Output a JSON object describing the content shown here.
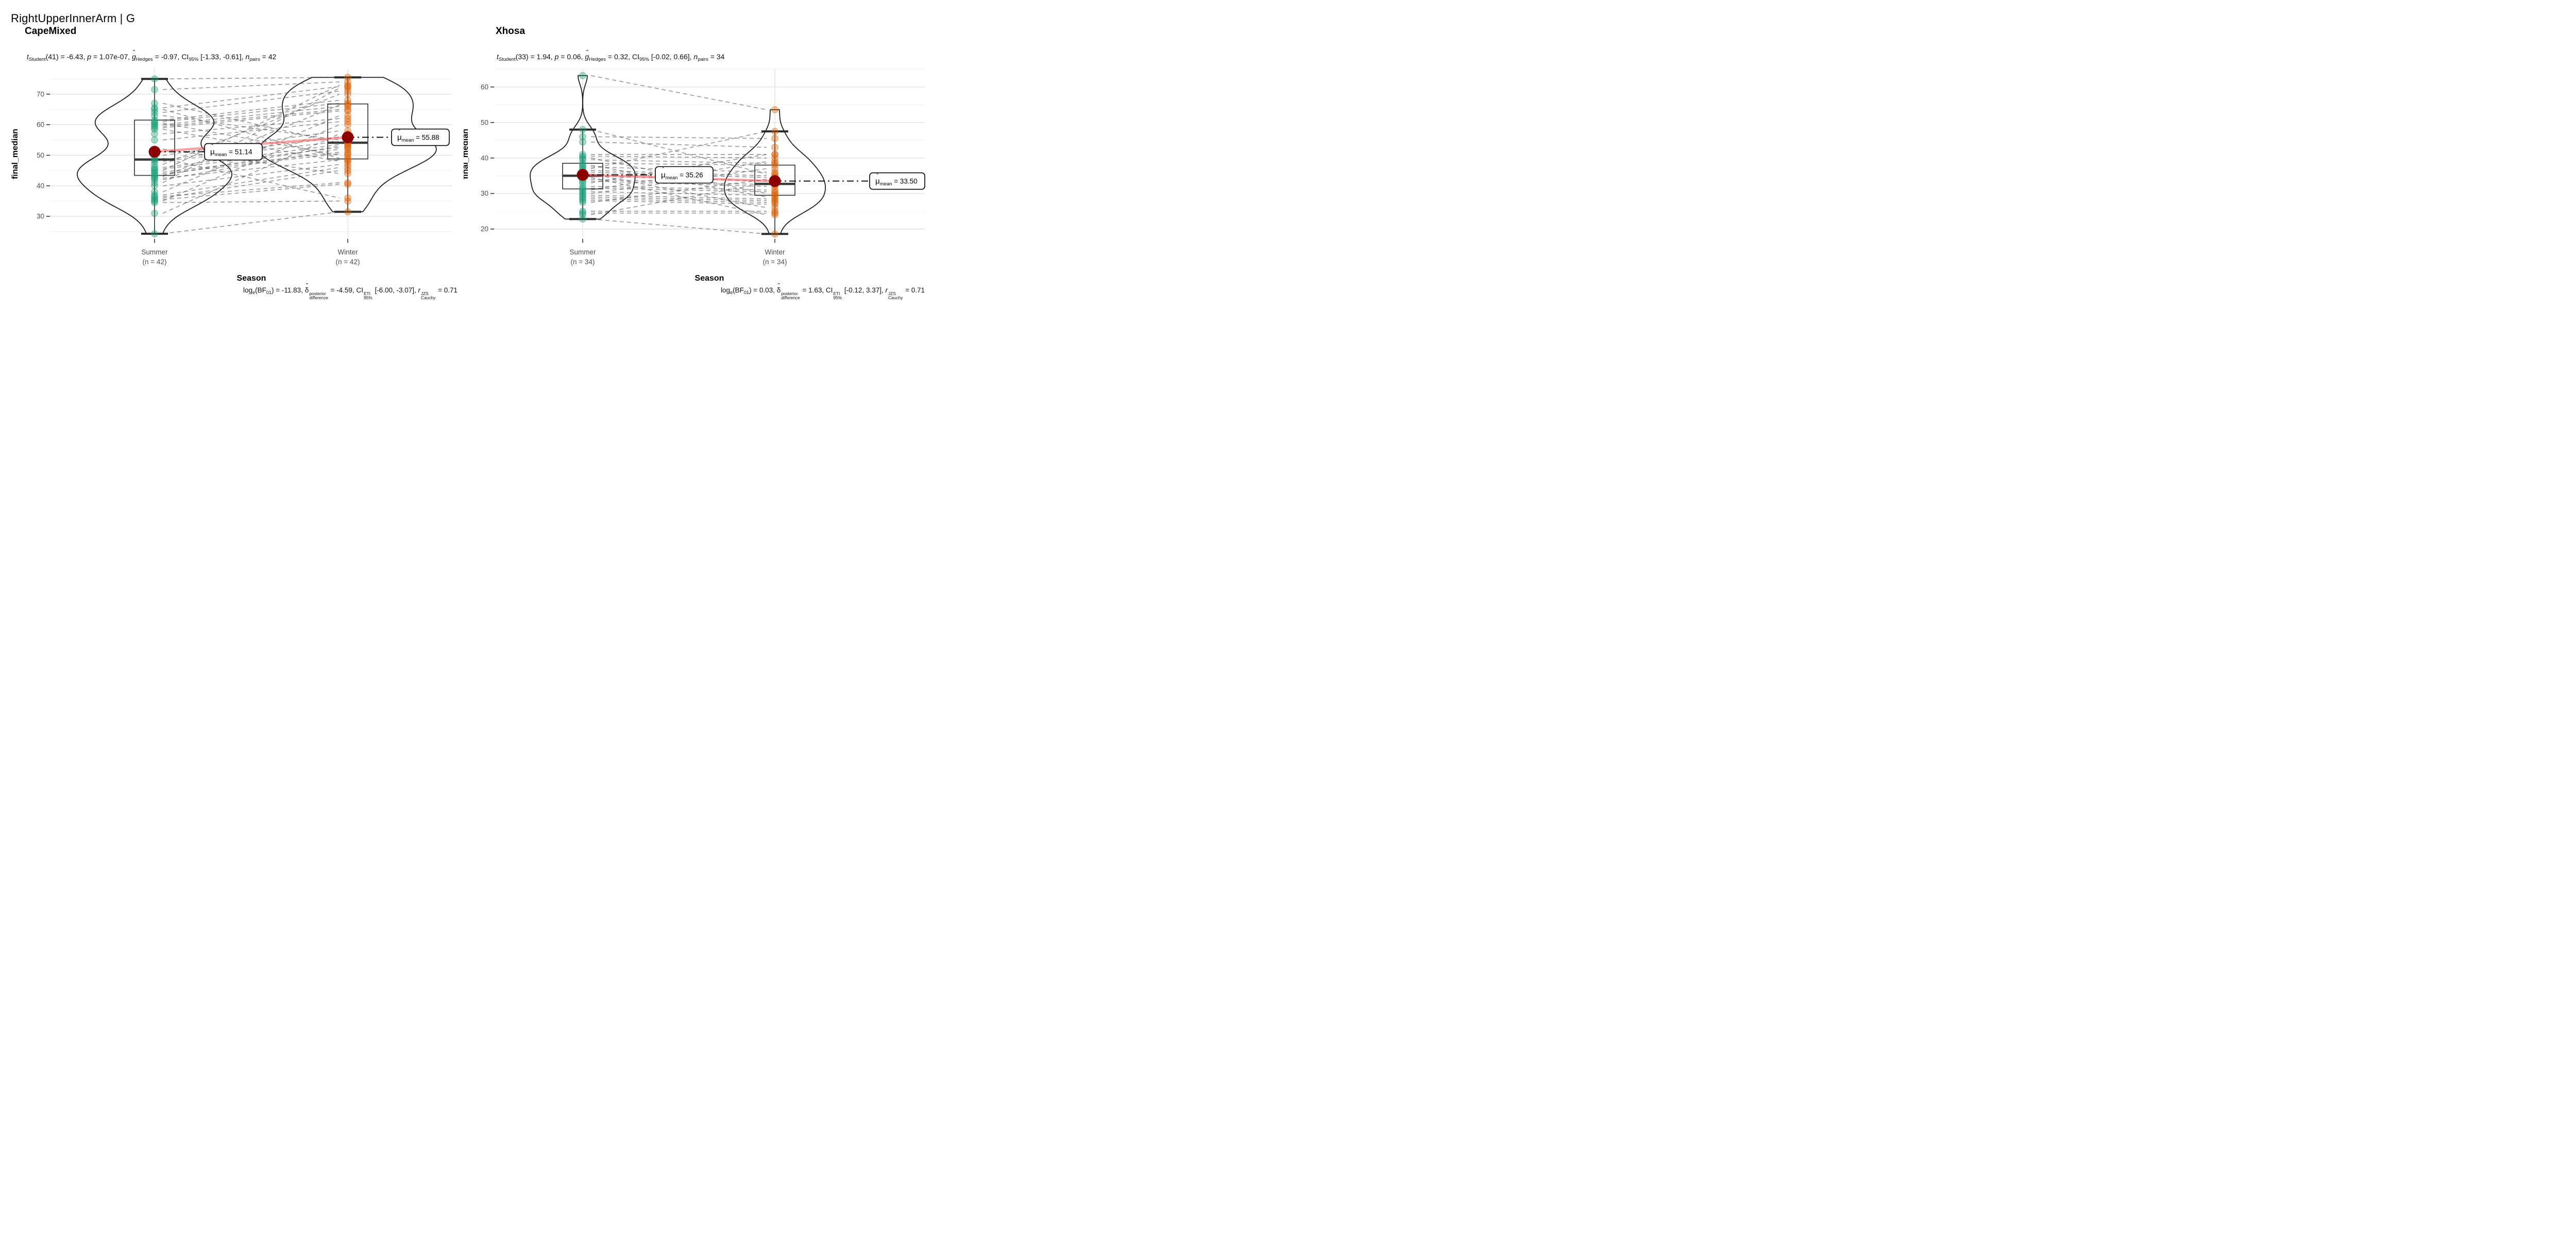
{
  "title": "RightUpperInnerArm | G",
  "colors": {
    "summer_points": "#1B9E77",
    "winter_points": "#D95F02",
    "mean_dot": "#8B0000",
    "mean_trend_line": "#FF5252",
    "paired_line": "#4A4A4A",
    "grid_major": "#E2E2E2",
    "grid_minor": "#EFEFEF",
    "axis_text": "#4D4D4D"
  },
  "chart_data": [
    {
      "type": "violin-box-scatter-paired",
      "group_title": "CapeMixed",
      "xlabel": "Season",
      "ylabel": "final_median",
      "categories": [
        {
          "label": "Summer",
          "n_label": "(n = 42)"
        },
        {
          "label": "Winter",
          "n_label": "(n = 42)"
        }
      ],
      "y_ticks": [
        30,
        40,
        50,
        60,
        70
      ],
      "y_minor": [
        25,
        35,
        45,
        55,
        65,
        75
      ],
      "ylim_view": [
        22.6,
        78.4
      ],
      "grid": true,
      "legend": "none",
      "means": [
        51.14,
        55.88
      ],
      "mean_labels": [
        "51.14",
        "55.88"
      ],
      "mean_label_prefix": "mean",
      "box": [
        {
          "lo": 24.3,
          "q1": 43.4,
          "median": 48.6,
          "q3": 61.5,
          "hi": 75.0
        },
        {
          "lo": 31.5,
          "q1": 48.8,
          "median": 54.1,
          "q3": 66.8,
          "hi": 75.5
        }
      ],
      "violin_halfwidth": [
        150,
        172
      ],
      "pairs": [
        [
          24.3,
          31.5
        ],
        [
          31,
          57
        ],
        [
          34.5,
          35
        ],
        [
          35,
          60
        ],
        [
          35.5,
          40.5
        ],
        [
          36,
          45
        ],
        [
          36.5,
          41
        ],
        [
          37,
          46
        ],
        [
          38,
          63
        ],
        [
          40,
          47
        ],
        [
          41,
          72
        ],
        [
          42,
          52
        ],
        [
          42.5,
          48.5
        ],
        [
          43,
          66.5
        ],
        [
          43.5,
          53
        ],
        [
          44,
          50.5
        ],
        [
          44.5,
          51
        ],
        [
          45,
          73
        ],
        [
          45.5,
          52.5
        ],
        [
          46,
          53.5
        ],
        [
          47,
          70
        ],
        [
          48,
          54.5
        ],
        [
          48.5,
          56
        ],
        [
          49,
          36
        ],
        [
          50,
          58
        ],
        [
          52,
          44
        ],
        [
          55,
          61
        ],
        [
          57,
          62
        ],
        [
          58.5,
          48
        ],
        [
          59,
          64.5
        ],
        [
          59.5,
          65
        ],
        [
          60,
          66
        ],
        [
          60.5,
          50
        ],
        [
          61,
          67
        ],
        [
          61.5,
          68
        ],
        [
          63,
          55
        ],
        [
          64,
          71
        ],
        [
          65,
          49
        ],
        [
          65.5,
          72.5
        ],
        [
          67,
          54
        ],
        [
          71.5,
          74
        ],
        [
          75,
          75.5
        ]
      ],
      "stats_line": [
        {
          "t": "t",
          "s": "i"
        },
        {
          "t": "Student",
          "s": "sub"
        },
        {
          "t": "(41) = -6.43, ",
          "s": ""
        },
        {
          "t": "p",
          "s": "i"
        },
        {
          "t": " = 1.07e-07, ",
          "s": ""
        },
        {
          "t": "g",
          "s": "ihat"
        },
        {
          "t": "Hedges",
          "s": "sub"
        },
        {
          "t": " = -0.97, CI",
          "s": ""
        },
        {
          "t": "95%",
          "s": "sub"
        },
        {
          "t": " [-1.33, -0.61], ",
          "s": ""
        },
        {
          "t": "n",
          "s": "i"
        },
        {
          "t": "pairs",
          "s": "sub"
        },
        {
          "t": " = 42",
          "s": ""
        }
      ],
      "caption_line": [
        {
          "t": "log",
          "s": ""
        },
        {
          "t": "e",
          "s": "sub"
        },
        {
          "t": "(BF",
          "s": ""
        },
        {
          "t": "01",
          "s": "sub"
        },
        {
          "t": ") = -11.83, ",
          "s": ""
        },
        {
          "t": "δ",
          "s": "hat"
        },
        {
          "s": "stack",
          "sup": "posterior",
          "sub": "difference"
        },
        {
          "t": " = -4.59, CI",
          "s": ""
        },
        {
          "s": "stack",
          "sup": "ETI",
          "sub": "95%"
        },
        {
          "t": " [-6.00, -3.07], ",
          "s": ""
        },
        {
          "t": "r",
          "s": "i"
        },
        {
          "s": "stack",
          "sup": "JZS",
          "sub": "Cauchy"
        },
        {
          "t": " = 0.71",
          "s": ""
        }
      ]
    },
    {
      "type": "violin-box-scatter-paired",
      "group_title": "Xhosa",
      "xlabel": "Season",
      "ylabel": "final_median",
      "categories": [
        {
          "label": "Summer",
          "n_label": "(n = 34)"
        },
        {
          "label": "Winter",
          "n_label": "(n = 34)"
        }
      ],
      "y_ticks": [
        20,
        30,
        40,
        50,
        60
      ],
      "y_minor": [
        25,
        35,
        45,
        55,
        65
      ],
      "ylim_view": [
        17.2,
        65.2
      ],
      "grid": true,
      "legend": "none",
      "means": [
        35.26,
        33.5
      ],
      "mean_labels": [
        "35.26",
        "33.50"
      ],
      "mean_label_prefix": "mean",
      "box": [
        {
          "lo": 22.8,
          "q1": 31.3,
          "median": 35.0,
          "q3": 38.5,
          "hi": 48.0
        },
        {
          "lo": 18.6,
          "q1": 29.5,
          "median": 32.7,
          "q3": 38.0,
          "hi": 47.5
        }
      ],
      "violin_halfwidth": [
        102,
        98
      ],
      "pairs": [
        [
          22.8,
          18.6
        ],
        [
          24,
          33
        ],
        [
          24.5,
          24.5
        ],
        [
          25,
          25
        ],
        [
          27.5,
          34
        ],
        [
          28,
          27
        ],
        [
          28.5,
          27.5
        ],
        [
          29,
          28
        ],
        [
          29.5,
          28.5
        ],
        [
          30,
          37
        ],
        [
          30.5,
          29.5
        ],
        [
          31,
          39
        ],
        [
          31.5,
          30.5
        ],
        [
          32,
          31
        ],
        [
          33,
          41
        ],
        [
          33.5,
          32
        ],
        [
          34,
          32.5
        ],
        [
          34.5,
          24
        ],
        [
          35,
          33.5
        ],
        [
          35.5,
          26
        ],
        [
          36,
          34.5
        ],
        [
          36.5,
          35
        ],
        [
          37,
          47.5
        ],
        [
          37.5,
          36
        ],
        [
          38,
          29
        ],
        [
          38.5,
          38
        ],
        [
          39.5,
          38.5
        ],
        [
          40,
          30
        ],
        [
          40.5,
          40
        ],
        [
          41,
          41
        ],
        [
          44.5,
          43
        ],
        [
          46,
          45.5
        ],
        [
          48,
          35.5
        ],
        [
          63.2,
          53.6
        ]
      ],
      "stats_line": [
        {
          "t": "t",
          "s": "i"
        },
        {
          "t": "Student",
          "s": "sub"
        },
        {
          "t": "(33) = 1.94, ",
          "s": ""
        },
        {
          "t": "p",
          "s": "i"
        },
        {
          "t": " = 0.06, ",
          "s": ""
        },
        {
          "t": "g",
          "s": "ihat"
        },
        {
          "t": "Hedges",
          "s": "sub"
        },
        {
          "t": " = 0.32, CI",
          "s": ""
        },
        {
          "t": "95%",
          "s": "sub"
        },
        {
          "t": " [-0.02, 0.66], ",
          "s": ""
        },
        {
          "t": "n",
          "s": "i"
        },
        {
          "t": "pairs",
          "s": "sub"
        },
        {
          "t": " = 34",
          "s": ""
        }
      ],
      "caption_line": [
        {
          "t": "log",
          "s": ""
        },
        {
          "t": "e",
          "s": "sub"
        },
        {
          "t": "(BF",
          "s": ""
        },
        {
          "t": "01",
          "s": "sub"
        },
        {
          "t": ") = 0.03, ",
          "s": ""
        },
        {
          "t": "δ",
          "s": "hat"
        },
        {
          "s": "stack",
          "sup": "posterior",
          "sub": "difference"
        },
        {
          "t": " = 1.63, CI",
          "s": ""
        },
        {
          "s": "stack",
          "sup": "ETI",
          "sub": "95%"
        },
        {
          "t": " [-0.12, 3.37], ",
          "s": ""
        },
        {
          "t": "r",
          "s": "i"
        },
        {
          "s": "stack",
          "sup": "JZS",
          "sub": "Cauchy"
        },
        {
          "t": " = 0.71",
          "s": ""
        }
      ]
    }
  ]
}
